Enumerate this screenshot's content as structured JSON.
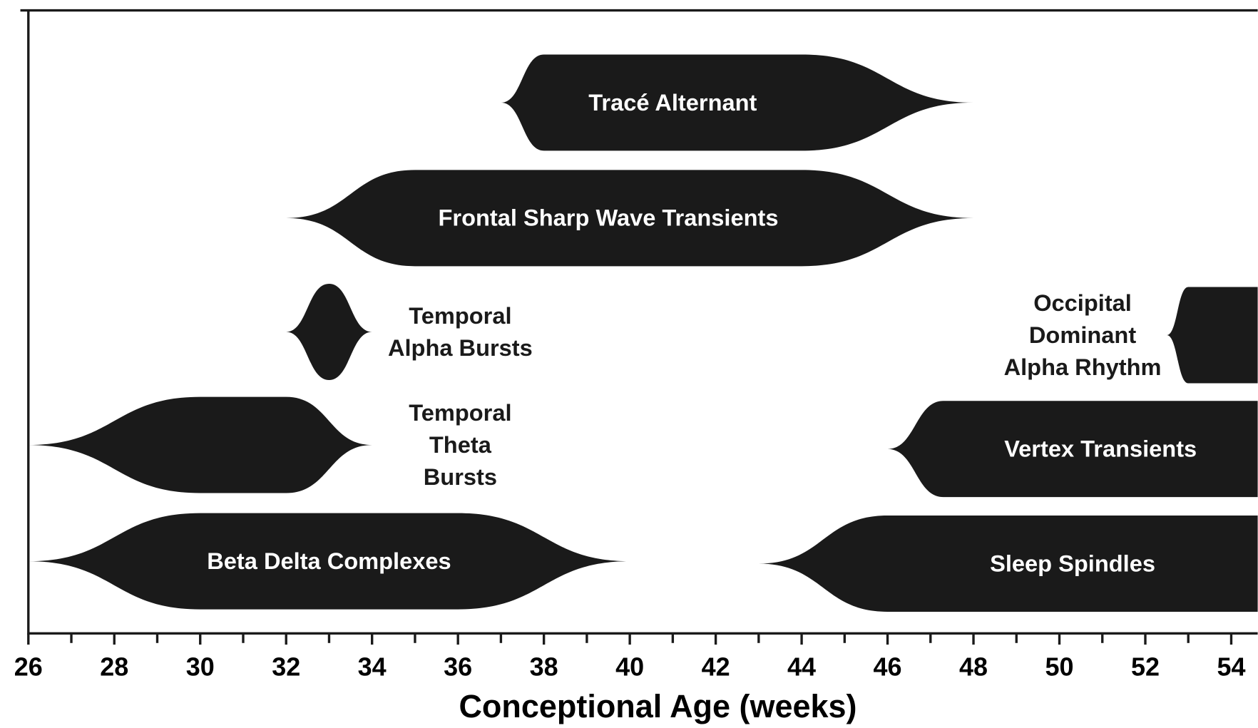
{
  "chart_data": {
    "type": "range",
    "x_label": "Conceptional Age (weeks)",
    "xlim": [
      26,
      54.6
    ],
    "xticks": [
      26,
      28,
      30,
      32,
      34,
      36,
      38,
      40,
      42,
      44,
      46,
      48,
      50,
      52,
      54
    ],
    "xminor": [
      27,
      29,
      31,
      33,
      35,
      37,
      39,
      41,
      43,
      45,
      47,
      49,
      51,
      53
    ],
    "color": "#1a1a1a",
    "series": [
      {
        "label": [
          "Tracé Alternant"
        ],
        "start": 37,
        "full_from": 38,
        "full_to": 44,
        "end": 48
      },
      {
        "label": [
          "Frontal Sharp Wave Transients"
        ],
        "start": 32,
        "full_from": 35,
        "full_to": 44,
        "end": 48
      },
      {
        "label": [
          "Temporal",
          "Alpha Bursts"
        ],
        "start": 32,
        "full_from": 33,
        "full_to": 33,
        "end": 34
      },
      {
        "label": [
          "Occipital",
          "Dominant",
          "Alpha Rhythm"
        ],
        "start": 52.5,
        "full_from": 53,
        "full_to": null,
        "end": null
      },
      {
        "label": [
          "Temporal",
          "Theta",
          "Bursts"
        ],
        "start": 26,
        "full_from": 30,
        "full_to": 32,
        "end": 34
      },
      {
        "label": [
          "Vertex Transients"
        ],
        "start": 46,
        "full_from": 47.3,
        "full_to": null,
        "end": null
      },
      {
        "label": [
          "Beta Delta Complexes"
        ],
        "start": 26,
        "full_from": 30,
        "full_to": 36,
        "end": 40
      },
      {
        "label": [
          "Sleep Spindles"
        ],
        "start": 43,
        "full_from": 46,
        "full_to": null,
        "end": null
      }
    ]
  }
}
